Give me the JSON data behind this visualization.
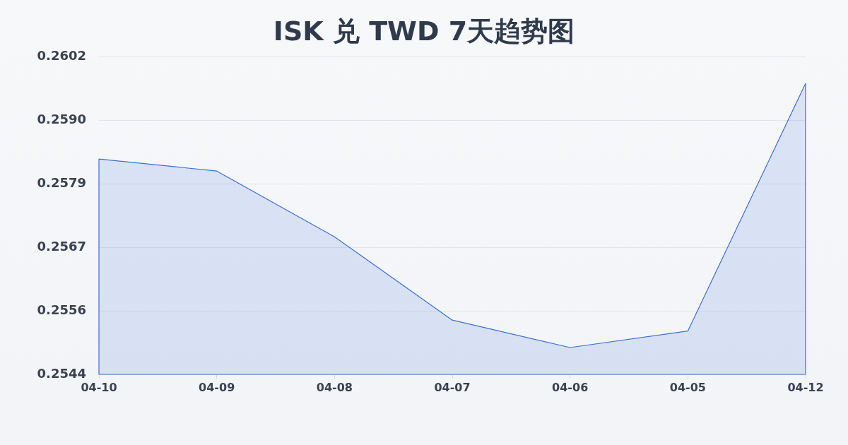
{
  "chart_data": {
    "type": "area",
    "title": "ISK 兑 TWD 7天趋势图",
    "categories": [
      "04-10",
      "04-09",
      "04-08",
      "04-07",
      "04-06",
      "04-05",
      "04-12"
    ],
    "series": [
      {
        "color": "#3a6fd6",
        "values": [
          0.25833,
          0.25811,
          0.25691,
          0.25539,
          0.25489,
          0.25519,
          0.25971
        ]
      }
    ],
    "ylim": [
      0.2544,
      0.2602
    ],
    "yticks": [
      0.2544,
      {
        "value": 0.25556,
        "label": "0.2556"
      },
      {
        "value": 0.25672,
        "label": "0.2567"
      },
      {
        "value": 0.25788,
        "label": "0.2579"
      },
      {
        "value": 0.25904,
        "label": "0.2590"
      },
      0.2602
    ],
    "grid": "y",
    "marker": "none"
  }
}
